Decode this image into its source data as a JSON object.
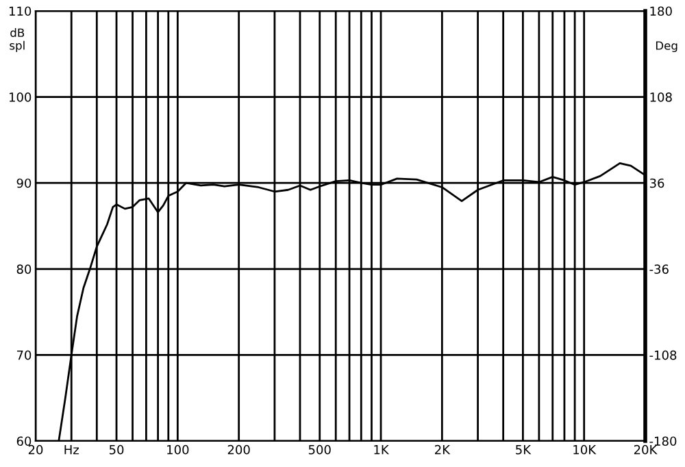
{
  "chart_data": {
    "type": "line",
    "ylabel": "dB\nspl",
    "y2label": "Deg",
    "x": [
      26,
      28,
      30,
      32,
      34.4,
      37,
      40,
      43,
      45,
      48,
      50,
      55,
      60,
      65,
      72,
      80,
      85,
      90,
      100,
      110,
      130,
      150,
      170,
      200,
      250,
      300,
      350,
      400,
      450,
      500,
      600,
      700,
      800,
      900,
      1000,
      1200,
      1500,
      2000,
      2500,
      3000,
      4000,
      5000,
      6000,
      7000,
      8000,
      9000,
      10000,
      12000,
      15000,
      17000,
      20000
    ],
    "series": [
      {
        "color": "#000000",
        "values": [
          60,
          65,
          70,
          74.5,
          77.8,
          80,
          82.6,
          84.2,
          85.2,
          87.2,
          87.5,
          87,
          87.2,
          88,
          88.2,
          86.6,
          87.4,
          88.5,
          89,
          90,
          89.7,
          89.8,
          89.6,
          89.8,
          89.5,
          89,
          89.2,
          89.7,
          89.2,
          89.6,
          90.2,
          90.3,
          90,
          89.8,
          89.8,
          90.5,
          90.4,
          89.5,
          87.9,
          89.2,
          90.3,
          90.3,
          90.1,
          90.7,
          90.3,
          89.8,
          90.1,
          90.8,
          92.3,
          92,
          90.9
        ]
      }
    ],
    "log": "x",
    "xlim": [
      20,
      20000
    ],
    "xticks": [
      20,
      {
        "value": 30,
        "label": "Hz"
      },
      {
        "value": 40,
        "label": null
      },
      50,
      {
        "value": 60,
        "label": null
      },
      {
        "value": 70,
        "label": null
      },
      {
        "value": 80,
        "label": null
      },
      {
        "value": 90,
        "label": null
      },
      100,
      200,
      {
        "value": 300,
        "label": null
      },
      {
        "value": 400,
        "label": null
      },
      500,
      {
        "value": 600,
        "label": null
      },
      {
        "value": 700,
        "label": null
      },
      {
        "value": 800,
        "label": null
      },
      {
        "value": 900,
        "label": null
      },
      {
        "value": 1000,
        "label": "1K"
      },
      {
        "value": 2000,
        "label": "2K"
      },
      {
        "value": 3000,
        "label": null
      },
      {
        "value": 4000,
        "label": null
      },
      {
        "value": 5000,
        "label": "5K"
      },
      {
        "value": 6000,
        "label": null
      },
      {
        "value": 7000,
        "label": null
      },
      {
        "value": 8000,
        "label": null
      },
      {
        "value": 9000,
        "label": null
      },
      {
        "value": 10000,
        "label": "10K"
      },
      {
        "value": 20000,
        "label": "20K"
      }
    ],
    "ylim": [
      60,
      110
    ],
    "yticks": [
      60,
      70,
      80,
      90,
      100,
      110
    ],
    "y2lim": [
      -180,
      180
    ],
    "y2ticks": [
      -180,
      -108,
      -36,
      36,
      108,
      180
    ],
    "grid": true
  }
}
